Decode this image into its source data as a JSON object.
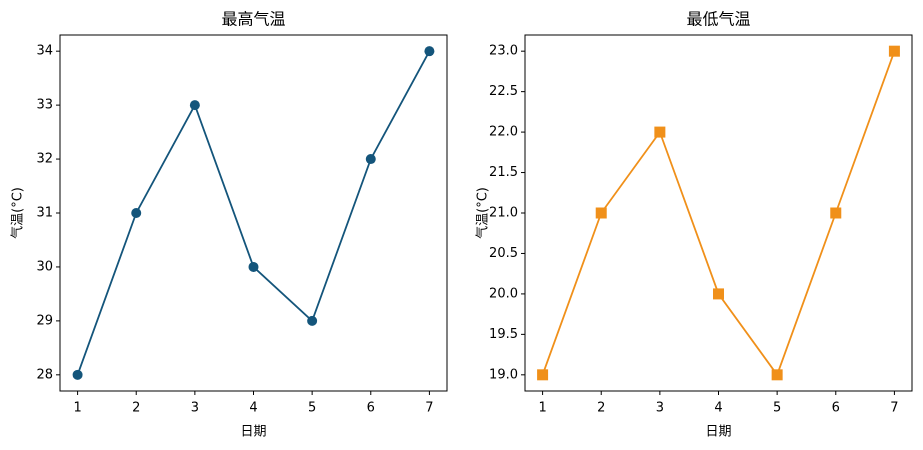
{
  "chart_data": [
    {
      "type": "line",
      "title": "最高气温",
      "x_label": "日期",
      "y_label": "气温(°C)",
      "x": [
        1,
        2,
        3,
        4,
        5,
        6,
        7
      ],
      "values": [
        28,
        31,
        33,
        30,
        29,
        32,
        34
      ],
      "color": "#14557b",
      "marker": "circle",
      "xlim": [
        0.7,
        7.3
      ],
      "xticks": [
        1,
        2,
        3,
        4,
        5,
        6,
        7
      ],
      "ylim": [
        27.7,
        34.3
      ],
      "yticks": [
        28,
        29,
        30,
        31,
        32,
        33,
        34
      ]
    },
    {
      "type": "line",
      "title": "最低气温",
      "x_label": "日期",
      "y_label": "气温(°C)",
      "x": [
        1,
        2,
        3,
        4,
        5,
        6,
        7
      ],
      "values": [
        19,
        21,
        22,
        20,
        19,
        21,
        23
      ],
      "color": "#f0901a",
      "marker": "square",
      "xlim": [
        0.7,
        7.3
      ],
      "xticks": [
        1,
        2,
        3,
        4,
        5,
        6,
        7
      ],
      "ylim": [
        18.8,
        23.2
      ],
      "yticks": [
        {
          "value": 19,
          "label": "19.0"
        },
        {
          "value": 19.5,
          "label": "19.5"
        },
        {
          "value": 20,
          "label": "20.0"
        },
        {
          "value": 20.5,
          "label": "20.5"
        },
        {
          "value": 21,
          "label": "21.0"
        },
        {
          "value": 21.5,
          "label": "21.5"
        },
        {
          "value": 22,
          "label": "22.0"
        },
        {
          "value": 22.5,
          "label": "22.5"
        },
        {
          "value": 23,
          "label": "23.0"
        }
      ]
    }
  ]
}
